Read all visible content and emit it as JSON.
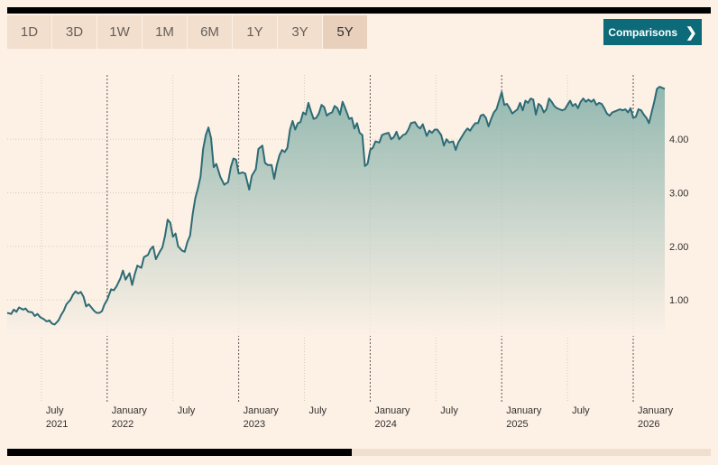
{
  "range_tabs": [
    {
      "label": "1D"
    },
    {
      "label": "3D"
    },
    {
      "label": "1W"
    },
    {
      "label": "1M"
    },
    {
      "label": "6M"
    },
    {
      "label": "1Y"
    },
    {
      "label": "3Y"
    },
    {
      "label": "5Y"
    }
  ],
  "active_range": "5Y",
  "comparisons": {
    "label": "Comparisons",
    "icon": "chevron-right-icon"
  },
  "colors": {
    "line": "#2d6b75",
    "fill_top": "#8db5ad",
    "fill_bottom": "#fdf1e6",
    "active_tab": "#e9d0bd",
    "button": "#0d6a78"
  },
  "chart_data": {
    "type": "area",
    "x_unit": "date (years, fractional)",
    "ylim": [
      -0.85,
      5.2
    ],
    "y_ticks": [
      {
        "value": 1,
        "label": "1.00"
      },
      {
        "value": 2,
        "label": "2.00"
      },
      {
        "value": 3,
        "label": "3.00"
      },
      {
        "value": 4,
        "label": "4.00"
      }
    ],
    "x_ticks": [
      {
        "month": "July",
        "year": "2021"
      },
      {
        "month": "January",
        "year": "2022"
      },
      {
        "month": "July",
        "year": ""
      },
      {
        "month": "January",
        "year": "2023"
      },
      {
        "month": "July",
        "year": ""
      },
      {
        "month": "January",
        "year": "2024"
      },
      {
        "month": "July",
        "year": ""
      },
      {
        "month": "January",
        "year": "2025"
      },
      {
        "month": "July",
        "year": ""
      },
      {
        "month": "January",
        "year": "2026"
      }
    ],
    "year_divider_dates": [
      2022.0,
      2023.0,
      2024.0,
      2025.0,
      2026.0
    ],
    "grid": true,
    "series": [
      {
        "values": [
          [
            2021.24,
            0.76
          ],
          [
            2021.27,
            0.74
          ],
          [
            2021.29,
            0.82
          ],
          [
            2021.31,
            0.78
          ],
          [
            2021.33,
            0.86
          ],
          [
            2021.36,
            0.82
          ],
          [
            2021.38,
            0.84
          ],
          [
            2021.4,
            0.78
          ],
          [
            2021.43,
            0.77
          ],
          [
            2021.45,
            0.7
          ],
          [
            2021.47,
            0.74
          ],
          [
            2021.49,
            0.68
          ],
          [
            2021.52,
            0.64
          ],
          [
            2021.54,
            0.6
          ],
          [
            2021.56,
            0.62
          ],
          [
            2021.58,
            0.56
          ],
          [
            2021.6,
            0.54
          ],
          [
            2021.63,
            0.62
          ],
          [
            2021.65,
            0.72
          ],
          [
            2021.67,
            0.8
          ],
          [
            2021.69,
            0.92
          ],
          [
            2021.72,
            1.0
          ],
          [
            2021.74,
            1.1
          ],
          [
            2021.76,
            1.16
          ],
          [
            2021.78,
            1.12
          ],
          [
            2021.8,
            1.15
          ],
          [
            2021.82,
            1.06
          ],
          [
            2021.84,
            0.88
          ],
          [
            2021.86,
            0.92
          ],
          [
            2021.88,
            0.86
          ],
          [
            2021.9,
            0.8
          ],
          [
            2021.92,
            0.76
          ],
          [
            2021.94,
            0.76
          ],
          [
            2021.96,
            0.79
          ],
          [
            2021.98,
            0.92
          ],
          [
            2022.0,
            1.0
          ],
          [
            2022.03,
            1.2
          ],
          [
            2022.05,
            1.18
          ],
          [
            2022.07,
            1.25
          ],
          [
            2022.1,
            1.4
          ],
          [
            2022.12,
            1.55
          ],
          [
            2022.14,
            1.38
          ],
          [
            2022.17,
            1.5
          ],
          [
            2022.19,
            1.28
          ],
          [
            2022.21,
            1.48
          ],
          [
            2022.23,
            1.64
          ],
          [
            2022.26,
            1.6
          ],
          [
            2022.28,
            1.8
          ],
          [
            2022.31,
            1.84
          ],
          [
            2022.33,
            1.95
          ],
          [
            2022.35,
            2.0
          ],
          [
            2022.37,
            1.76
          ],
          [
            2022.4,
            1.9
          ],
          [
            2022.42,
            1.98
          ],
          [
            2022.44,
            2.2
          ],
          [
            2022.46,
            2.5
          ],
          [
            2022.48,
            2.44
          ],
          [
            2022.5,
            2.18
          ],
          [
            2022.52,
            2.24
          ],
          [
            2022.54,
            2.0
          ],
          [
            2022.57,
            1.92
          ],
          [
            2022.59,
            1.9
          ],
          [
            2022.61,
            2.08
          ],
          [
            2022.63,
            2.2
          ],
          [
            2022.65,
            2.6
          ],
          [
            2022.67,
            2.9
          ],
          [
            2022.69,
            3.08
          ],
          [
            2022.71,
            3.3
          ],
          [
            2022.73,
            3.82
          ],
          [
            2022.75,
            4.08
          ],
          [
            2022.77,
            4.22
          ],
          [
            2022.79,
            4.02
          ],
          [
            2022.81,
            3.48
          ],
          [
            2022.83,
            3.54
          ],
          [
            2022.86,
            3.3
          ],
          [
            2022.89,
            3.15
          ],
          [
            2022.92,
            3.2
          ],
          [
            2022.94,
            3.48
          ],
          [
            2022.96,
            3.64
          ],
          [
            2022.98,
            3.62
          ],
          [
            2023.0,
            3.36
          ],
          [
            2023.03,
            3.38
          ],
          [
            2023.05,
            3.36
          ],
          [
            2023.08,
            3.06
          ],
          [
            2023.1,
            3.32
          ],
          [
            2023.13,
            3.44
          ],
          [
            2023.15,
            3.82
          ],
          [
            2023.18,
            3.88
          ],
          [
            2023.2,
            3.56
          ],
          [
            2023.22,
            3.52
          ],
          [
            2023.25,
            3.52
          ],
          [
            2023.27,
            3.26
          ],
          [
            2023.29,
            3.52
          ],
          [
            2023.31,
            3.7
          ],
          [
            2023.33,
            3.8
          ],
          [
            2023.35,
            3.76
          ],
          [
            2023.37,
            3.84
          ],
          [
            2023.39,
            4.18
          ],
          [
            2023.41,
            4.34
          ],
          [
            2023.43,
            4.18
          ],
          [
            2023.45,
            4.3
          ],
          [
            2023.47,
            4.32
          ],
          [
            2023.49,
            4.5
          ],
          [
            2023.51,
            4.46
          ],
          [
            2023.53,
            4.68
          ],
          [
            2023.55,
            4.52
          ],
          [
            2023.57,
            4.38
          ],
          [
            2023.59,
            4.4
          ],
          [
            2023.61,
            4.48
          ],
          [
            2023.63,
            4.64
          ],
          [
            2023.65,
            4.6
          ],
          [
            2023.67,
            4.44
          ],
          [
            2023.69,
            4.48
          ],
          [
            2023.71,
            4.5
          ],
          [
            2023.73,
            4.62
          ],
          [
            2023.75,
            4.58
          ],
          [
            2023.77,
            4.46
          ],
          [
            2023.79,
            4.7
          ],
          [
            2023.81,
            4.58
          ],
          [
            2023.84,
            4.38
          ],
          [
            2023.86,
            4.4
          ],
          [
            2023.88,
            4.2
          ],
          [
            2023.9,
            4.3
          ],
          [
            2023.92,
            4.12
          ],
          [
            2023.94,
            4.08
          ],
          [
            2023.95,
            3.8
          ],
          [
            2023.96,
            3.5
          ],
          [
            2023.98,
            3.54
          ],
          [
            2024.0,
            3.8
          ],
          [
            2024.02,
            3.84
          ],
          [
            2024.04,
            3.96
          ],
          [
            2024.07,
            3.94
          ],
          [
            2024.09,
            4.08
          ],
          [
            2024.11,
            4.1
          ],
          [
            2024.14,
            4.12
          ],
          [
            2024.16,
            4.0
          ],
          [
            2024.18,
            4.04
          ],
          [
            2024.2,
            4.14
          ],
          [
            2024.22,
            4.0
          ],
          [
            2024.25,
            4.08
          ],
          [
            2024.27,
            4.1
          ],
          [
            2024.29,
            4.18
          ],
          [
            2024.31,
            4.3
          ],
          [
            2024.34,
            4.32
          ],
          [
            2024.36,
            4.24
          ],
          [
            2024.38,
            4.2
          ],
          [
            2024.4,
            4.28
          ],
          [
            2024.43,
            4.06
          ],
          [
            2024.45,
            4.16
          ],
          [
            2024.47,
            4.12
          ],
          [
            2024.49,
            4.18
          ],
          [
            2024.51,
            4.18
          ],
          [
            2024.54,
            4.08
          ],
          [
            2024.56,
            3.88
          ],
          [
            2024.58,
            4.0
          ],
          [
            2024.6,
            3.94
          ],
          [
            2024.63,
            3.96
          ],
          [
            2024.65,
            3.8
          ],
          [
            2024.67,
            3.94
          ],
          [
            2024.7,
            4.06
          ],
          [
            2024.72,
            4.14
          ],
          [
            2024.74,
            4.2
          ],
          [
            2024.76,
            4.16
          ],
          [
            2024.78,
            4.24
          ],
          [
            2024.8,
            4.3
          ],
          [
            2024.82,
            4.3
          ],
          [
            2024.84,
            4.44
          ],
          [
            2024.86,
            4.46
          ],
          [
            2024.88,
            4.4
          ],
          [
            2024.9,
            4.24
          ],
          [
            2024.92,
            4.38
          ],
          [
            2024.94,
            4.5
          ],
          [
            2024.96,
            4.56
          ],
          [
            2024.98,
            4.72
          ],
          [
            2025.0,
            4.88
          ],
          [
            2025.02,
            4.64
          ],
          [
            2025.04,
            4.66
          ],
          [
            2025.06,
            4.58
          ],
          [
            2025.08,
            4.48
          ],
          [
            2025.1,
            4.52
          ],
          [
            2025.12,
            4.56
          ],
          [
            2025.14,
            4.68
          ],
          [
            2025.16,
            4.54
          ],
          [
            2025.18,
            4.72
          ],
          [
            2025.2,
            4.68
          ],
          [
            2025.22,
            4.76
          ],
          [
            2025.24,
            4.74
          ],
          [
            2025.26,
            4.46
          ],
          [
            2025.28,
            4.66
          ],
          [
            2025.3,
            4.62
          ],
          [
            2025.32,
            4.5
          ],
          [
            2025.34,
            4.56
          ],
          [
            2025.36,
            4.76
          ],
          [
            2025.38,
            4.7
          ],
          [
            2025.4,
            4.62
          ],
          [
            2025.42,
            4.58
          ],
          [
            2025.44,
            4.56
          ],
          [
            2025.46,
            4.54
          ],
          [
            2025.48,
            4.56
          ],
          [
            2025.5,
            4.64
          ],
          [
            2025.52,
            4.72
          ],
          [
            2025.54,
            4.62
          ],
          [
            2025.56,
            4.66
          ],
          [
            2025.58,
            4.58
          ],
          [
            2025.6,
            4.7
          ],
          [
            2025.62,
            4.76
          ],
          [
            2025.64,
            4.7
          ],
          [
            2025.66,
            4.74
          ],
          [
            2025.68,
            4.7
          ],
          [
            2025.7,
            4.74
          ],
          [
            2025.72,
            4.64
          ],
          [
            2025.74,
            4.68
          ],
          [
            2025.76,
            4.66
          ],
          [
            2025.78,
            4.58
          ],
          [
            2025.8,
            4.48
          ],
          [
            2025.82,
            4.44
          ],
          [
            2025.84,
            4.5
          ],
          [
            2025.86,
            4.52
          ],
          [
            2025.88,
            4.54
          ],
          [
            2025.9,
            4.56
          ],
          [
            2025.92,
            4.54
          ],
          [
            2025.94,
            4.56
          ],
          [
            2025.96,
            4.5
          ],
          [
            2025.98,
            4.58
          ],
          [
            2026.0,
            4.4
          ],
          [
            2026.02,
            4.42
          ],
          [
            2026.04,
            4.56
          ],
          [
            2026.06,
            4.54
          ],
          [
            2026.08,
            4.46
          ],
          [
            2026.1,
            4.4
          ],
          [
            2026.12,
            4.3
          ],
          [
            2026.14,
            4.5
          ],
          [
            2026.16,
            4.7
          ],
          [
            2026.18,
            4.94
          ],
          [
            2026.2,
            4.98
          ],
          [
            2026.24,
            4.94
          ]
        ]
      }
    ]
  },
  "scrollbar": {
    "visible_fraction": 0.49
  }
}
